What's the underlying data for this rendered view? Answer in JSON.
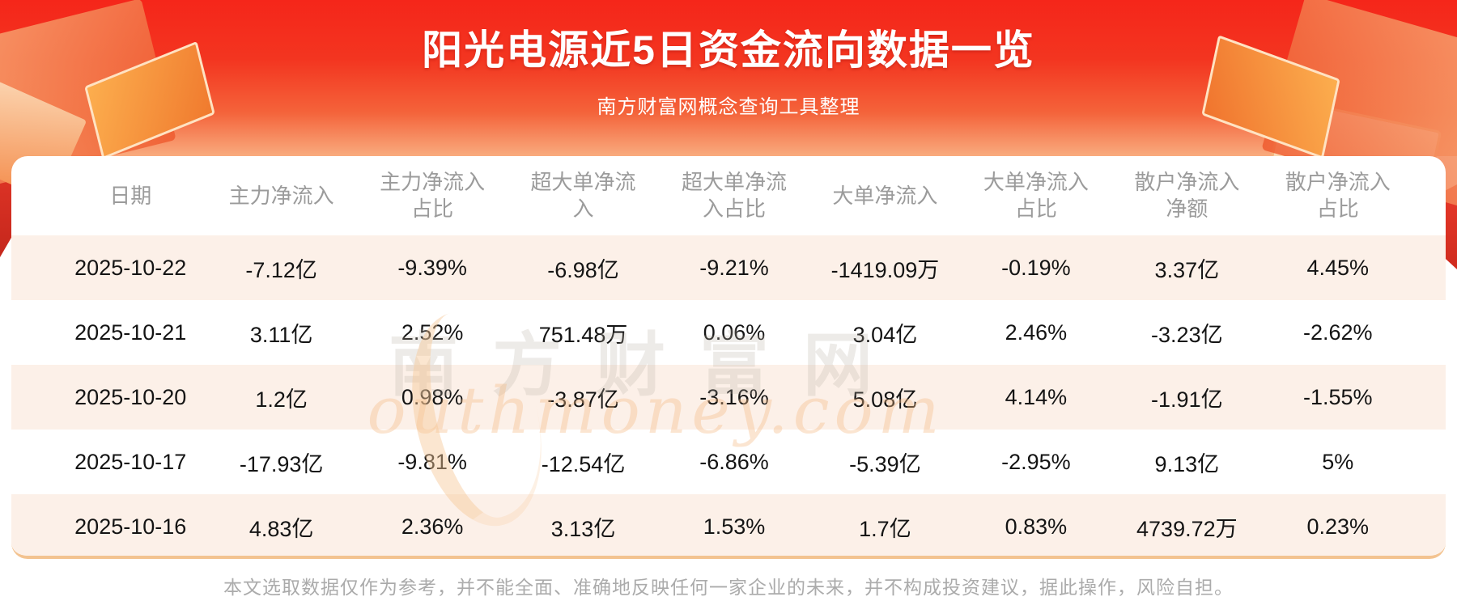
{
  "banner": {
    "title": "阳光电源近5日资金流向数据一览",
    "subtitle": "南方财富网概念查询工具整理"
  },
  "chart_data": {
    "type": "table",
    "title": "阳光电源近5日资金流向数据一览",
    "columns": [
      "日期",
      "主力净流入",
      "主力净流入占比",
      "超大单净流入",
      "超大单净流入占比",
      "大单净流入",
      "大单净流入占比",
      "散户净流入净额",
      "散户净流入占比"
    ],
    "rows": [
      [
        "2025-10-22",
        "-7.12亿",
        "-9.39%",
        "-6.98亿",
        "-9.21%",
        "-1419.09万",
        "-0.19%",
        "3.37亿",
        "4.45%"
      ],
      [
        "2025-10-21",
        "3.11亿",
        "2.52%",
        "751.48万",
        "0.06%",
        "3.04亿",
        "2.46%",
        "-3.23亿",
        "-2.62%"
      ],
      [
        "2025-10-20",
        "1.2亿",
        "0.98%",
        "-3.87亿",
        "-3.16%",
        "5.08亿",
        "4.14%",
        "-1.91亿",
        "-1.55%"
      ],
      [
        "2025-10-17",
        "-17.93亿",
        "-9.81%",
        "-12.54亿",
        "-6.86%",
        "-5.39亿",
        "-2.95%",
        "9.13亿",
        "5%"
      ],
      [
        "2025-10-16",
        "4.83亿",
        "2.36%",
        "3.13亿",
        "1.53%",
        "1.7亿",
        "0.83%",
        "4739.72万",
        "0.23%"
      ]
    ]
  },
  "watermark": {
    "cn": "南方财富网",
    "en": "outhmoney.com"
  },
  "footer": {
    "disclaimer": "本文选取数据仅作为参考，并不能全面、准确地反映任何一家企业的未来，并不构成投资建议，据此操作，风险自担。"
  },
  "colors": {
    "banner_red_top": "#f5261a",
    "banner_salmon_bottom": "#f9ab7e",
    "row_stripe": "#fcf0e8",
    "header_text": "#9b9b9b",
    "cell_text": "#141414",
    "bottom_line_orange": "#f3c390",
    "disclaimer_text": "#ababab"
  }
}
